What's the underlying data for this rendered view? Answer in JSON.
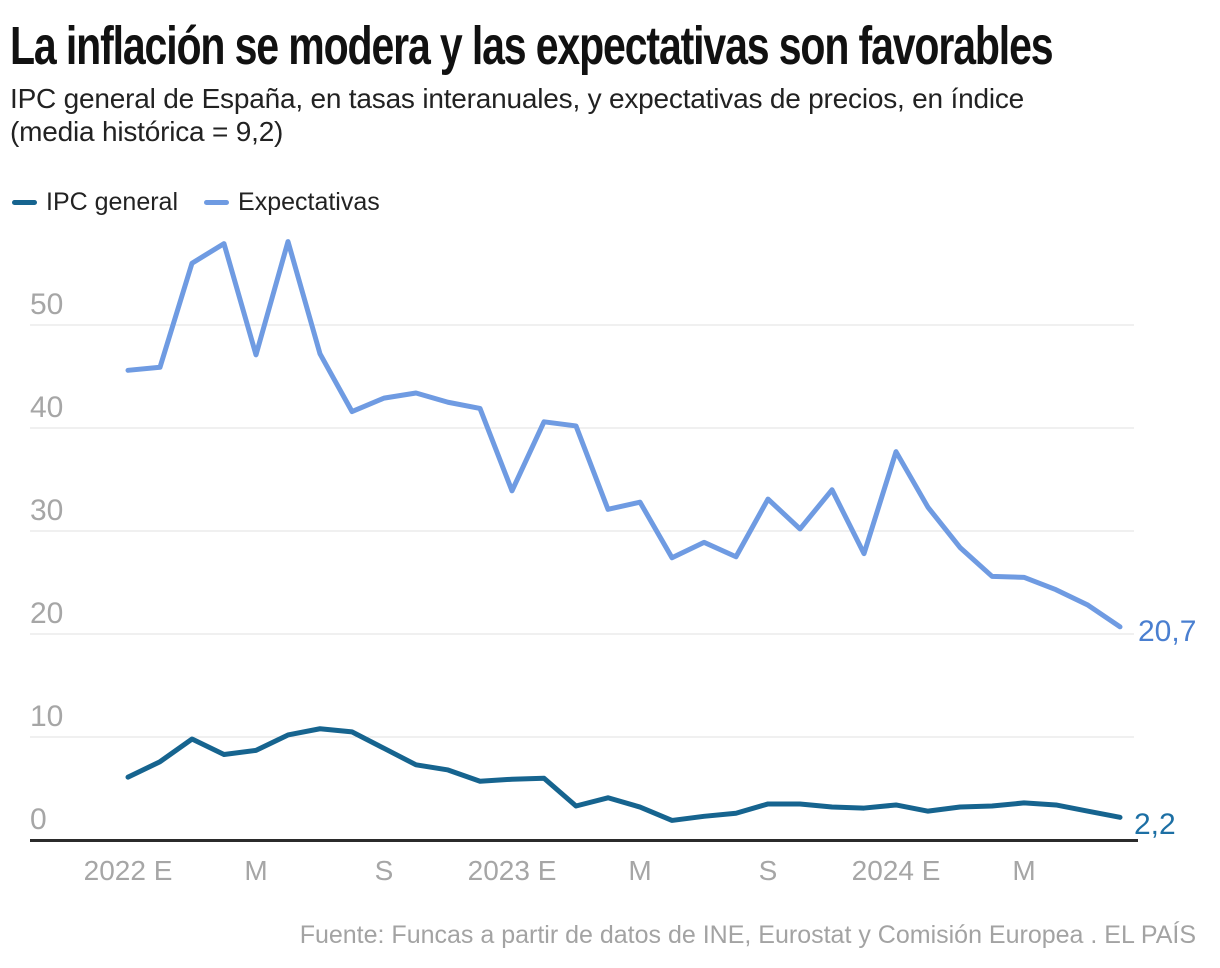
{
  "header": {
    "title": "La inflación se modera y las expectativas son favorables",
    "subtitle_line1": "IPC general de España, en tasas interanuales, y expectativas de precios, en índice",
    "subtitle_line2": "(media histórica = 9,2)"
  },
  "legend": {
    "items": [
      {
        "label": "IPC general",
        "color": "#16648F"
      },
      {
        "label": "Expectativas",
        "color": "#6F9BE2"
      }
    ]
  },
  "chart_data": {
    "type": "line",
    "x_unit": "month",
    "x_start": "2022-01",
    "x_end": "2024-08",
    "x_tick_labels": [
      "2022 E",
      "M",
      "S",
      "2023 E",
      "M",
      "S",
      "2024 E",
      "M"
    ],
    "x_tick_month_indices": [
      0,
      4,
      8,
      12,
      16,
      20,
      24,
      28
    ],
    "y_tick_labels": [
      "50",
      "40",
      "30",
      "20",
      "10",
      "0"
    ],
    "y_ticks": [
      50,
      40,
      30,
      20,
      10,
      0
    ],
    "ylim": [
      0,
      60
    ],
    "grid": true,
    "legend_position": "top-left",
    "series": [
      {
        "name": "IPC general",
        "color": "#16648F",
        "end_label": "2,2",
        "end_label_color": "#1C6FA4",
        "values": [
          6.1,
          7.6,
          9.8,
          8.3,
          8.7,
          10.2,
          10.8,
          10.5,
          8.9,
          7.3,
          6.8,
          5.7,
          5.9,
          6.0,
          3.3,
          4.1,
          3.2,
          1.9,
          2.3,
          2.6,
          3.5,
          3.5,
          3.2,
          3.1,
          3.4,
          2.8,
          3.2,
          3.3,
          3.6,
          3.4,
          2.8,
          2.2
        ]
      },
      {
        "name": "Expectativas",
        "color": "#6F9BE2",
        "end_label": "20,7",
        "end_label_color": "#4A7FD0",
        "values": [
          45.6,
          45.9,
          56.0,
          57.9,
          47.1,
          58.1,
          47.2,
          41.6,
          42.9,
          43.4,
          42.5,
          41.9,
          33.9,
          40.6,
          40.2,
          32.1,
          32.8,
          27.4,
          28.9,
          27.5,
          33.1,
          30.2,
          34.0,
          27.8,
          37.7,
          32.3,
          28.4,
          25.6,
          25.5,
          24.3,
          22.8,
          20.7
        ]
      }
    ],
    "colors": {
      "grid": "#E2E2E2",
      "axis": "#2B2B2B"
    }
  },
  "footer": {
    "source": "Fuente: Funcas a partir de datos de INE, Eurostat y Comisión Europea . EL PAÍS"
  }
}
